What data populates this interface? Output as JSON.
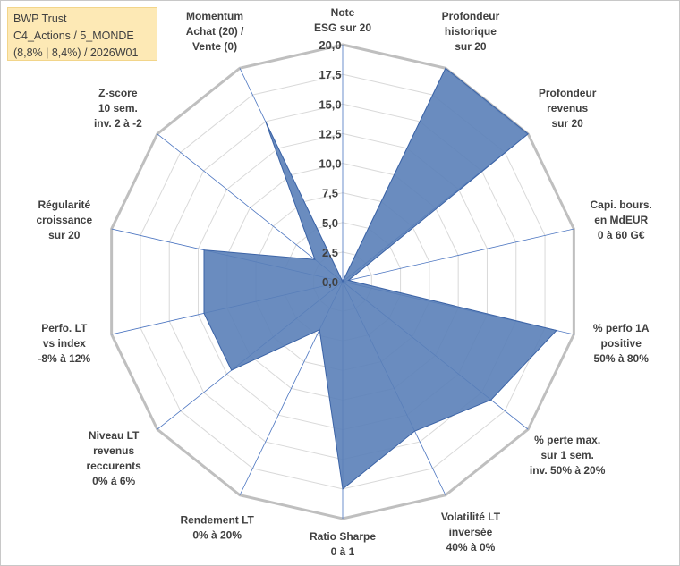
{
  "title_box": {
    "line1": "BWP Trust",
    "line2": "C4_Actions / 5_MONDE",
    "line3": "(8,8% | 8,4%) / 2026W01"
  },
  "chart_data": {
    "type": "radar",
    "range": [
      0,
      20
    ],
    "tick_step": 2.5,
    "tick_labels": [
      "0,0",
      "2,5",
      "5,0",
      "7,5",
      "10,0",
      "12,5",
      "15,0",
      "17,5",
      "20,0"
    ],
    "grid": true,
    "fill_color": "#5a7fb8",
    "line_color": "#3b63a6",
    "axes": [
      {
        "label": [
          "Note",
          "ESG sur 20"
        ],
        "value": 0
      },
      {
        "label": [
          "Profondeur",
          "historique",
          "sur 20"
        ],
        "value": 20
      },
      {
        "label": [
          "Profondeur",
          "revenus",
          "sur 20"
        ],
        "value": 20
      },
      {
        "label": [
          "Capi. bours.",
          "en MdEUR",
          "0 à 60 G€"
        ],
        "value": 0.5
      },
      {
        "label": [
          "% perfo 1A",
          "positive",
          "50% à 80%"
        ],
        "value": 18.5
      },
      {
        "label": [
          "% perte max.",
          "sur 1 sem.",
          "inv. 50% à 20%"
        ],
        "value": 16
      },
      {
        "label": [
          "Volatilité LT",
          "inversée",
          "40% à 0%"
        ],
        "value": 14
      },
      {
        "label": [
          "Ratio Sharpe",
          "0 à 1"
        ],
        "value": 17.5
      },
      {
        "label": [
          "Rendement LT",
          "0% à 20%"
        ],
        "value": 4.5
      },
      {
        "label": [
          "Niveau LT",
          "revenus",
          "reccurents",
          "0% à 6%"
        ],
        "value": 12
      },
      {
        "label": [
          "Perfo. LT",
          "vs index",
          "-8% à 12%"
        ],
        "value": 12
      },
      {
        "label": [
          "Régularité",
          "croissance",
          "sur 20"
        ],
        "value": 12
      },
      {
        "label": [
          "Z-score",
          "10 sem.",
          "inv. 2 à -2"
        ],
        "value": 3
      },
      {
        "label": [
          "Momentum",
          "Achat (20) /",
          "Vente (0)"
        ],
        "value": 15
      }
    ]
  }
}
